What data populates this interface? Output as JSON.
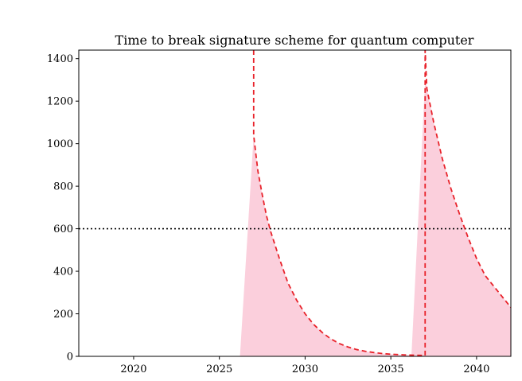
{
  "chart_data": {
    "type": "area",
    "title": "Time to break signature scheme for quantum computer",
    "xlabel": "",
    "ylabel": "",
    "xlim": [
      2016.8,
      2042.0
    ],
    "ylim": [
      0,
      1440
    ],
    "x_ticks": [
      2020,
      2025,
      2030,
      2035,
      2040
    ],
    "y_ticks": [
      0,
      200,
      400,
      600,
      800,
      1000,
      1200,
      1400
    ],
    "grid": false,
    "legend": "none",
    "threshold": {
      "y": 600,
      "style": "dotted",
      "color": "#000000"
    },
    "series": [
      {
        "style": "dashed",
        "color": "#e8222a",
        "x": [
          2027.0,
          2027.0,
          2027.1,
          2027.25,
          2027.5,
          2027.75,
          2028.0,
          2028.5,
          2029.0,
          2029.5,
          2030.0,
          2030.5,
          2031.0,
          2031.5,
          2032.0,
          2032.5,
          2033.0,
          2033.5,
          2034.0,
          2034.5,
          2035.0,
          2035.5,
          2036.0,
          2036.5,
          2037.0,
          2037.0,
          2037.1,
          2037.5,
          2038.0,
          2038.5,
          2039.0,
          2039.5,
          2040.0,
          2040.5,
          2041.0,
          2041.5,
          2042.0
        ],
        "y": [
          1440,
          1040,
          970,
          870,
          760,
          660,
          585,
          460,
          345,
          265,
          200,
          150,
          112,
          82,
          60,
          44,
          32,
          24,
          18,
          13,
          10,
          8,
          6,
          5,
          4,
          1440,
          1260,
          1100,
          930,
          790,
          670,
          560,
          460,
          380,
          330,
          280,
          230
        ]
      }
    ],
    "shaded_regions": [
      {
        "color": "#fbcfdc",
        "x": [
          2026.2,
          2027.0,
          2027.1,
          2027.25,
          2027.5,
          2027.75,
          2028.0,
          2028.5,
          2029.0,
          2029.5,
          2030.0,
          2030.5,
          2031.0,
          2031.5,
          2032.0,
          2032.5,
          2033.0,
          2033.5,
          2034.0,
          2034.5,
          2035.0,
          2035.5,
          2036.0,
          2036.2
        ],
        "y": [
          0,
          1040,
          970,
          870,
          760,
          660,
          585,
          460,
          345,
          265,
          200,
          150,
          112,
          82,
          60,
          44,
          32,
          24,
          18,
          13,
          10,
          8,
          6,
          5
        ]
      },
      {
        "color": "#fbcfdc",
        "x": [
          2036.2,
          2037.0,
          2037.1,
          2037.5,
          2038.0,
          2038.5,
          2039.0,
          2039.5,
          2040.0,
          2040.5,
          2041.0,
          2041.5,
          2042.0
        ],
        "y": [
          0,
          1300,
          1260,
          1100,
          930,
          790,
          670,
          560,
          460,
          380,
          330,
          280,
          230
        ]
      }
    ]
  }
}
